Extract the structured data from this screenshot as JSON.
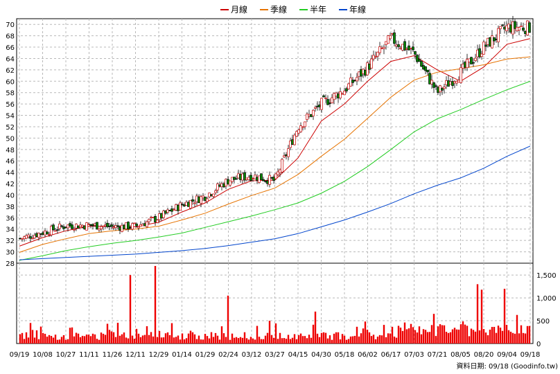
{
  "legend": [
    {
      "label": "月線",
      "color": "#cc0000"
    },
    {
      "label": "季線",
      "color": "#e67300"
    },
    {
      "label": "半年",
      "color": "#22cc22"
    },
    {
      "label": "年線",
      "color": "#0044cc"
    }
  ],
  "footer": "資料日期: 09/18 (Goodinfo.tw)",
  "chart_data": [
    {
      "type": "candlestick",
      "ylim": [
        28,
        71
      ],
      "yticks": [
        28,
        30,
        32,
        34,
        36,
        38,
        40,
        42,
        44,
        46,
        48,
        50,
        52,
        54,
        56,
        58,
        60,
        62,
        64,
        66,
        68,
        70
      ],
      "xticks": [
        "09/19",
        "10/08",
        "10/27",
        "11/11",
        "11/26",
        "12/11",
        "12/29",
        "01/14",
        "01/29",
        "02/24",
        "03/12",
        "03/27",
        "04/15",
        "04/30",
        "05/18",
        "06/02",
        "06/17",
        "07/03",
        "07/21",
        "08/05",
        "08/20",
        "09/04",
        "09/18"
      ],
      "grid": true,
      "close_points": [
        {
          "x": "09/19",
          "y": 32.3
        },
        {
          "x": "10/08",
          "y": 33.4
        },
        {
          "x": "10/27",
          "y": 34.6
        },
        {
          "x": "11/11",
          "y": 34.7
        },
        {
          "x": "11/26",
          "y": 34.4
        },
        {
          "x": "12/11",
          "y": 34.5
        },
        {
          "x": "12/29",
          "y": 36.0
        },
        {
          "x": "01/14",
          "y": 38.3
        },
        {
          "x": "01/29",
          "y": 39.8
        },
        {
          "x": "02/24",
          "y": 42.6
        },
        {
          "x": "03/12",
          "y": 43.4
        },
        {
          "x": "03/27",
          "y": 42.5
        },
        {
          "x": "04/15",
          "y": 52.0
        },
        {
          "x": "04/30",
          "y": 56.0
        },
        {
          "x": "05/18",
          "y": 58.5
        },
        {
          "x": "06/02",
          "y": 62.5
        },
        {
          "x": "06/17",
          "y": 67.5
        },
        {
          "x": "07/03",
          "y": 65.0
        },
        {
          "x": "07/21",
          "y": 58.0
        },
        {
          "x": "08/05",
          "y": 61.5
        },
        {
          "x": "08/20",
          "y": 66.0
        },
        {
          "x": "09/04",
          "y": 69.5
        },
        {
          "x": "09/18",
          "y": 69.5
        }
      ],
      "series": [
        {
          "name": "月線",
          "color": "#cc0000",
          "x": [
            "09/19",
            "10/08",
            "10/27",
            "11/11",
            "11/26",
            "12/11",
            "12/29",
            "01/14",
            "01/29",
            "02/24",
            "03/12",
            "03/27",
            "04/15",
            "04/30",
            "05/18",
            "06/02",
            "06/17",
            "07/03",
            "07/21",
            "08/05",
            "08/20",
            "09/04",
            "09/18"
          ],
          "values": [
            31.0,
            32.5,
            33.7,
            34.5,
            34.5,
            34.4,
            35.2,
            37.0,
            38.6,
            41.0,
            42.5,
            42.6,
            46.5,
            53.0,
            56.0,
            60.0,
            63.5,
            64.5,
            62.0,
            60.0,
            62.5,
            66.5,
            67.5
          ]
        },
        {
          "name": "季線",
          "color": "#e67300",
          "x": [
            "09/19",
            "10/08",
            "10/27",
            "11/11",
            "11/26",
            "12/11",
            "12/29",
            "01/14",
            "01/29",
            "02/24",
            "03/12",
            "03/27",
            "04/15",
            "04/30",
            "05/18",
            "06/02",
            "06/17",
            "07/03",
            "07/21",
            "08/05",
            "08/20",
            "09/04",
            "09/18"
          ],
          "values": [
            29.9,
            31.3,
            32.3,
            33.2,
            33.7,
            34.0,
            34.5,
            35.6,
            36.8,
            38.4,
            39.9,
            41.2,
            43.6,
            46.8,
            49.8,
            53.5,
            57.2,
            60.2,
            61.6,
            62.2,
            62.9,
            63.9,
            64.3
          ]
        },
        {
          "name": "半年",
          "color": "#22cc22",
          "x": [
            "09/19",
            "10/08",
            "10/27",
            "11/11",
            "11/26",
            "12/11",
            "12/29",
            "01/14",
            "01/29",
            "02/24",
            "03/12",
            "03/27",
            "04/15",
            "04/30",
            "05/18",
            "06/02",
            "06/17",
            "07/03",
            "07/21",
            "08/05",
            "08/20",
            "09/04",
            "09/18"
          ],
          "values": [
            28.5,
            29.3,
            30.2,
            30.9,
            31.5,
            32.0,
            32.6,
            33.3,
            34.3,
            35.3,
            36.3,
            37.4,
            38.6,
            40.3,
            42.4,
            45.0,
            48.0,
            51.1,
            53.4,
            55.0,
            56.8,
            58.5,
            60.0
          ]
        },
        {
          "name": "年線",
          "color": "#0044cc",
          "x": [
            "09/19",
            "10/08",
            "10/27",
            "11/11",
            "11/26",
            "12/11",
            "12/29",
            "01/14",
            "01/29",
            "02/24",
            "03/12",
            "03/27",
            "04/15",
            "04/30",
            "05/18",
            "06/02",
            "06/17",
            "07/03",
            "07/21",
            "08/05",
            "08/20",
            "09/04",
            "09/18"
          ],
          "values": [
            28.6,
            28.8,
            29.0,
            29.2,
            29.4,
            29.6,
            29.9,
            30.2,
            30.6,
            31.1,
            31.7,
            32.3,
            33.2,
            34.4,
            35.6,
            37.0,
            38.5,
            40.2,
            41.7,
            43.0,
            44.7,
            46.8,
            48.6
          ]
        }
      ]
    },
    {
      "type": "bar",
      "ylim": [
        0,
        1700
      ],
      "yticks": [
        0,
        500,
        1000,
        1500
      ],
      "ytick_labels": [
        "0",
        "500",
        "1,000",
        "1,500"
      ],
      "color": "#ee0000",
      "spikes": [
        {
          "x": "12/11",
          "value": 1500
        },
        {
          "x": "12/29",
          "value": 1750
        },
        {
          "x": "02/24",
          "value": 1050
        },
        {
          "x": "04/30",
          "value": 700
        },
        {
          "x": "07/21",
          "value": 650
        },
        {
          "x": "08/20",
          "value": 1180
        },
        {
          "x": "08/20",
          "value": 1300
        },
        {
          "x": "09/04",
          "value": 1200
        }
      ]
    }
  ]
}
